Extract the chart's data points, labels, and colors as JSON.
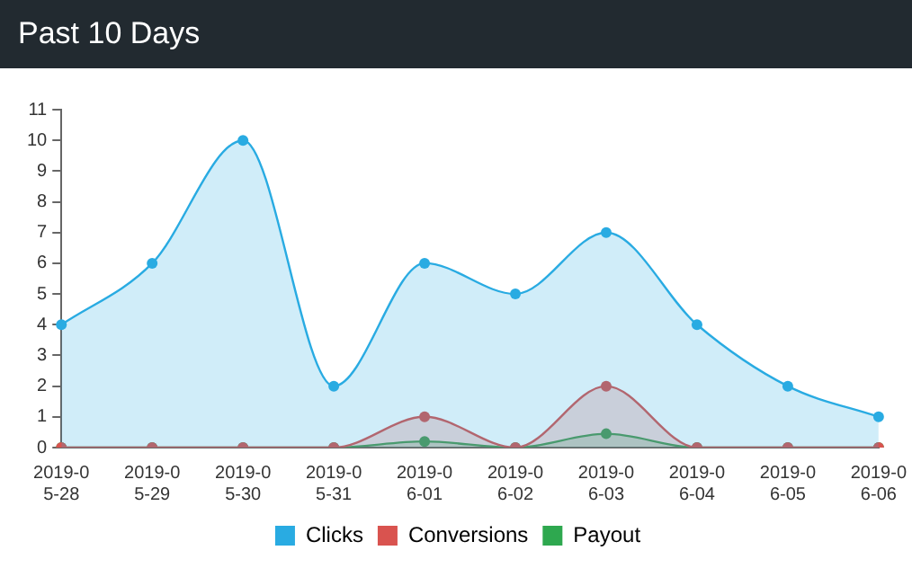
{
  "chart_data": {
    "type": "area",
    "title": "Past 10 Days",
    "categories": [
      "2019-05-28",
      "2019-05-29",
      "2019-05-30",
      "2019-05-31",
      "2019-06-01",
      "2019-06-02",
      "2019-06-03",
      "2019-06-04",
      "2019-06-05",
      "2019-06-06"
    ],
    "series": [
      {
        "name": "Clicks",
        "color": "#29abe2",
        "values": [
          4,
          6,
          10,
          2,
          6,
          5,
          7,
          4,
          2,
          1
        ]
      },
      {
        "name": "Conversions",
        "color": "#d9534f",
        "values": [
          0,
          0,
          0,
          0,
          1,
          0,
          2,
          0,
          0,
          0
        ]
      },
      {
        "name": "Payout",
        "color": "#2ea84f",
        "values": [
          0,
          0,
          0,
          0,
          0.2,
          0,
          0.45,
          0,
          0,
          0
        ]
      }
    ],
    "ylim": [
      0,
      11
    ],
    "yticks": [
      0,
      1,
      2,
      3,
      4,
      5,
      6,
      7,
      8,
      9,
      10,
      11
    ],
    "grid": false,
    "legend": "bottom",
    "marker": "circle"
  }
}
